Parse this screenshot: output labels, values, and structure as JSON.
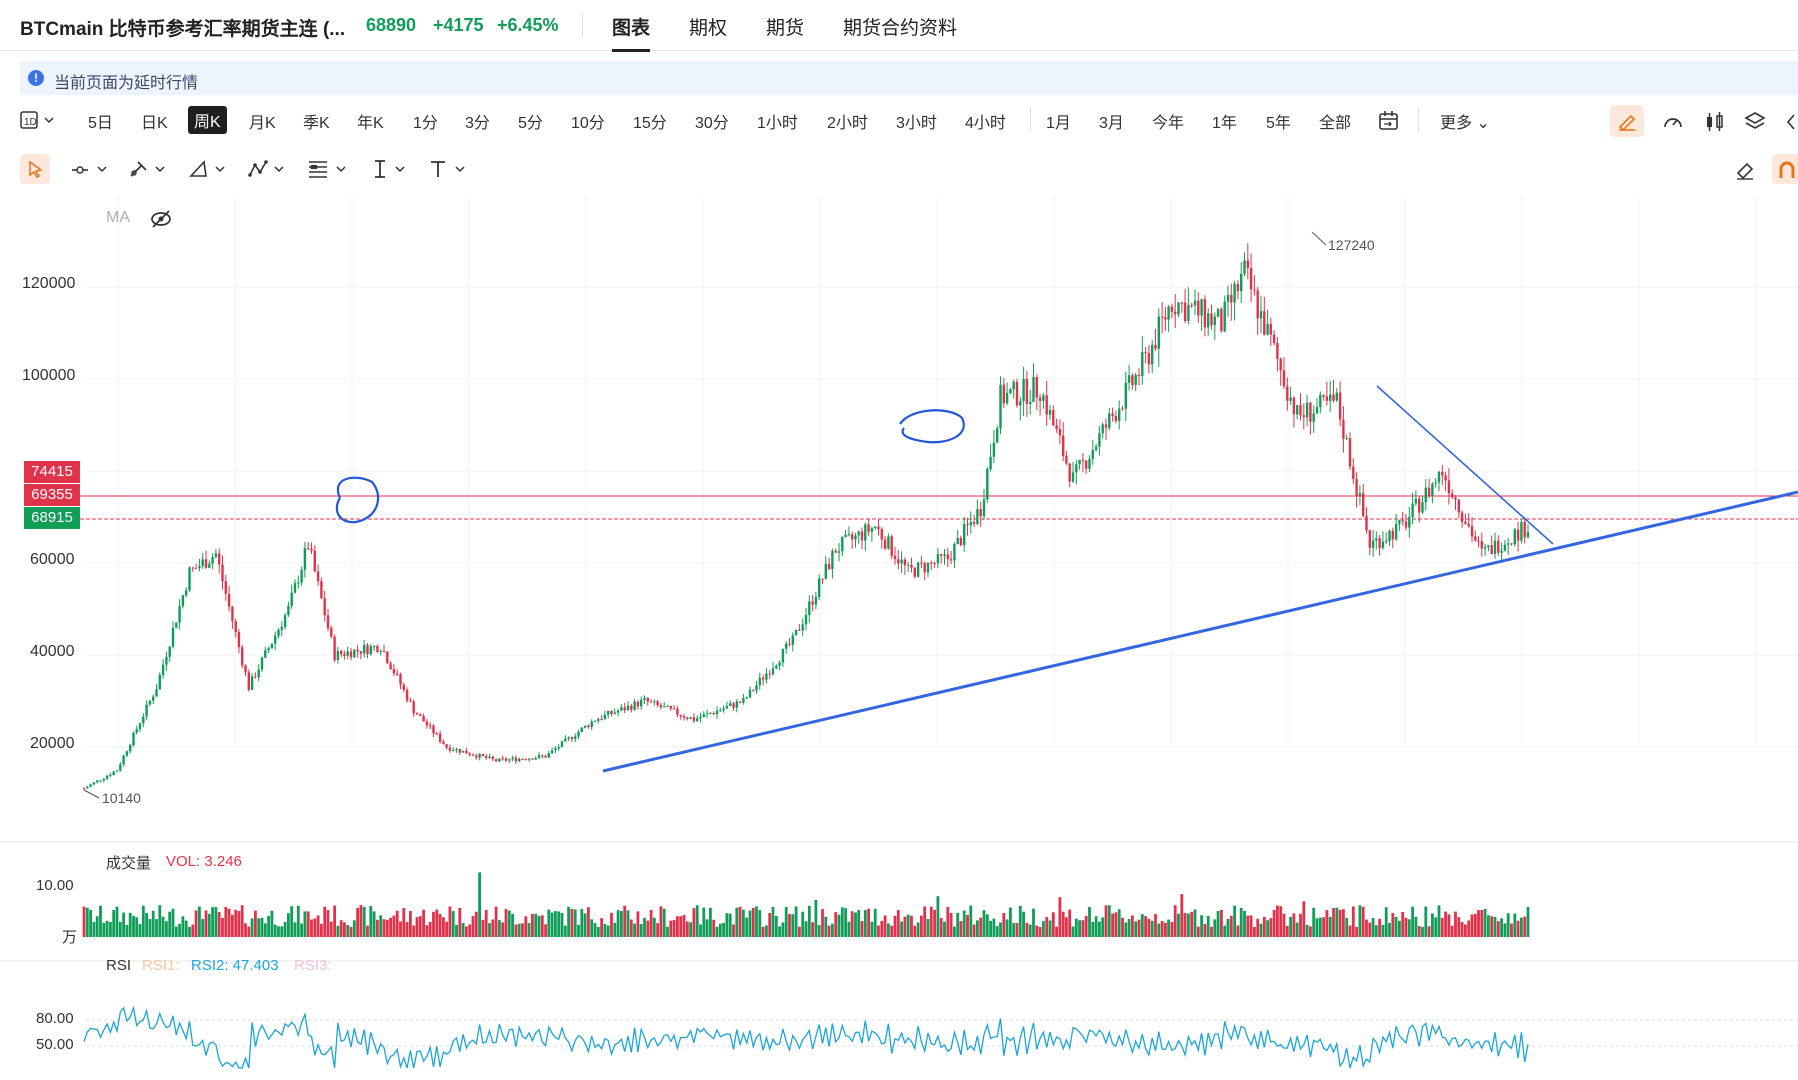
{
  "header": {
    "symbol_title": "BTCmain 比特币参考汇率期货主连 (...",
    "price": "68890",
    "change": "+4175",
    "change_pct": "+6.45%",
    "tabs": [
      "图表",
      "期权",
      "期货",
      "期货合约资料"
    ],
    "active_tab": "图表"
  },
  "notice": {
    "icon": "info-icon",
    "text": "当前页面为延时行情"
  },
  "periods": {
    "items": [
      "5日",
      "日K",
      "周K",
      "月K",
      "季K",
      "年K",
      "1分",
      "3分",
      "5分",
      "10分",
      "15分",
      "30分",
      "1小时",
      "2小时",
      "3小时",
      "4小时",
      "1月",
      "3月",
      "今年",
      "1年",
      "5年",
      "全部"
    ],
    "active": "周K",
    "more_label": "更多"
  },
  "toolbar_icons": [
    "layout-icon",
    "calendar-icon",
    "draw-icon",
    "speedometer-icon",
    "candle-type-icon",
    "layers-icon",
    "cursor-icon",
    "line-tool-icon",
    "brush-icon",
    "shape-tool-icon",
    "pattern-tool-icon",
    "fib-tool-icon",
    "text-cursor-icon",
    "text-tool-icon",
    "eraser-icon",
    "magnet-icon"
  ],
  "main_chart": {
    "ma_label": "MA",
    "y_labels": [
      "120000",
      "100000",
      "60000",
      "40000",
      "20000"
    ],
    "price_tags": [
      {
        "label": "74415",
        "color": "#e0334b"
      },
      {
        "label": "69355",
        "color": "#e0334b"
      },
      {
        "label": "68915",
        "color": "#0f9d58"
      }
    ],
    "high_label": "127240",
    "low_label": "10140",
    "up_color": "#0f9d58",
    "down_color": "#e0334b",
    "trend_line_color": "#3366e0"
  },
  "volume_panel": {
    "title": "成交量",
    "indicator": "VOL: 3.246",
    "y_label": "10.00",
    "unit": "万"
  },
  "rsi_panel": {
    "title": "RSI",
    "rsi1": "RSI1:",
    "rsi2": "RSI2: 47.403",
    "rsi3": "RSI3:",
    "y_labels": [
      "80.00",
      "50.00"
    ],
    "line_color": "#1aa5d8"
  }
}
